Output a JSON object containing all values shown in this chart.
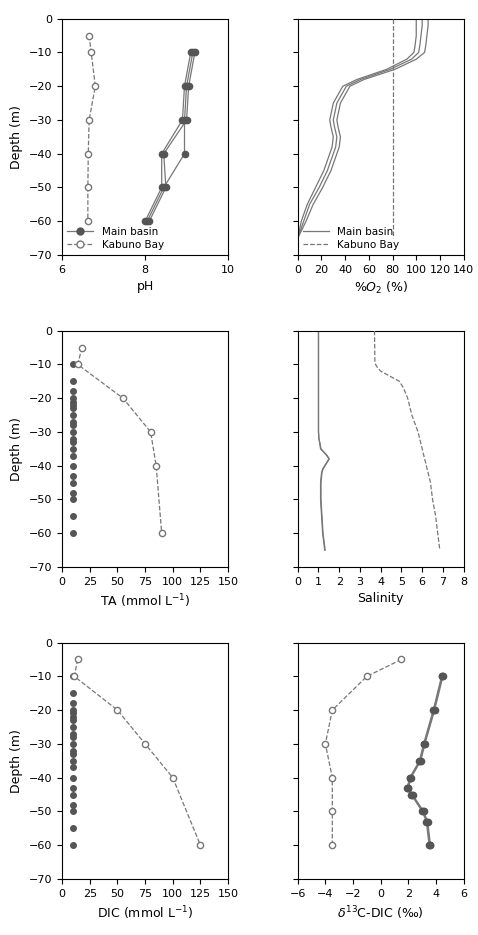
{
  "pH_kabuno_depth": [
    -5,
    -10,
    -20,
    -30,
    -40,
    -50,
    -60
  ],
  "pH_kabuno_values": [
    6.65,
    6.7,
    6.8,
    6.65,
    6.63,
    6.62,
    6.62
  ],
  "pH_main_series": [
    {
      "depth": [
        -10,
        -20,
        -30,
        -40,
        -50,
        -60
      ],
      "values": [
        9.2,
        9.05,
        9.0,
        8.45,
        8.5,
        8.1
      ]
    },
    {
      "depth": [
        -10,
        -20,
        -30,
        -40,
        -50,
        -60
      ],
      "values": [
        9.15,
        9.0,
        8.95,
        8.95,
        8.45,
        8.05
      ]
    },
    {
      "depth": [
        -10,
        -20,
        -30,
        -40,
        -50,
        -60
      ],
      "values": [
        9.1,
        8.95,
        8.9,
        8.4,
        8.4,
        8.0
      ]
    }
  ],
  "o2_kabuno_depth": [
    0,
    -10,
    -10.5,
    -65
  ],
  "o2_kabuno_values": [
    80,
    80,
    80,
    80
  ],
  "o2_main_series": [
    {
      "depth": [
        0,
        -2,
        -5,
        -8,
        -10,
        -12,
        -15,
        -18,
        -20,
        -25,
        -30,
        -32,
        -35,
        -38,
        -40,
        -45,
        -50,
        -55,
        -60,
        -65
      ],
      "values": [
        100,
        100,
        100,
        99,
        98,
        92,
        75,
        50,
        38,
        30,
        27,
        28,
        30,
        29,
        27,
        22,
        15,
        8,
        3,
        0
      ]
    },
    {
      "depth": [
        0,
        -2,
        -5,
        -8,
        -10,
        -12,
        -15,
        -18,
        -20,
        -25,
        -30,
        -32,
        -35,
        -38,
        -40,
        -45,
        -50,
        -55,
        -60,
        -65
      ],
      "values": [
        105,
        105,
        104,
        103,
        102,
        96,
        78,
        53,
        41,
        33,
        30,
        31,
        33,
        32,
        30,
        25,
        18,
        10,
        5,
        0
      ]
    },
    {
      "depth": [
        0,
        -2,
        -5,
        -8,
        -10,
        -12,
        -15,
        -18,
        -20,
        -25,
        -30,
        -32,
        -35,
        -38,
        -40,
        -45,
        -50,
        -55,
        -60,
        -65
      ],
      "values": [
        110,
        110,
        109,
        108,
        107,
        100,
        82,
        56,
        44,
        36,
        33,
        34,
        36,
        35,
        33,
        28,
        21,
        13,
        7,
        0
      ]
    }
  ],
  "ta_kabuno_depth": [
    -5,
    -10,
    -20,
    -30,
    -40,
    -60
  ],
  "ta_kabuno_values": [
    18,
    14,
    55,
    80,
    85,
    90
  ],
  "ta_main_depths": [
    -10,
    -15,
    -18,
    -20,
    -21,
    -22,
    -23,
    -25,
    -27,
    -28,
    -30,
    -32,
    -33,
    -35,
    -37,
    -40,
    -43,
    -45,
    -48,
    -50,
    -55,
    -60
  ],
  "ta_main_values": [
    10,
    10,
    10,
    10,
    10,
    10,
    10,
    10,
    10,
    10,
    10,
    10,
    10,
    10,
    10,
    10,
    10,
    10,
    10,
    10,
    10,
    10
  ],
  "salinity_kabuno_depth": [
    0,
    -9,
    -10,
    -11,
    -12,
    -13,
    -14,
    -15,
    -17,
    -20,
    -25,
    -30,
    -35,
    -40,
    -45,
    -50,
    -55,
    -60,
    -65
  ],
  "salinity_kabuno_values": [
    3.7,
    3.72,
    3.75,
    3.85,
    4.0,
    4.3,
    4.6,
    4.9,
    5.1,
    5.3,
    5.5,
    5.8,
    6.0,
    6.2,
    6.4,
    6.5,
    6.65,
    6.75,
    6.85
  ],
  "salinity_main_series": [
    {
      "depth": [
        0,
        -5,
        -10,
        -20,
        -30,
        -32,
        -33,
        -35,
        -37,
        -38,
        -39,
        -40,
        -41,
        -42,
        -45,
        -50,
        -55,
        -60,
        -65
      ],
      "values": [
        1.0,
        1.0,
        1.0,
        1.0,
        1.0,
        1.02,
        1.05,
        1.1,
        1.4,
        1.5,
        1.4,
        1.3,
        1.2,
        1.15,
        1.1,
        1.1,
        1.15,
        1.2,
        1.3
      ]
    },
    {
      "depth": [
        0,
        -5,
        -10,
        -20,
        -30,
        -32,
        -33,
        -35,
        -37,
        -38,
        -39,
        -40,
        -41,
        -42,
        -45,
        -50,
        -55,
        -60,
        -65
      ],
      "values": [
        1.0,
        1.0,
        1.0,
        1.0,
        1.0,
        1.02,
        1.06,
        1.12,
        1.42,
        1.52,
        1.42,
        1.32,
        1.22,
        1.17,
        1.12,
        1.12,
        1.17,
        1.22,
        1.32
      ]
    }
  ],
  "dic_kabuno_depth": [
    -5,
    -10,
    -20,
    -30,
    -40,
    -60
  ],
  "dic_kabuno_values": [
    14,
    11,
    50,
    75,
    100,
    125
  ],
  "dic_main_depths": [
    -10,
    -15,
    -18,
    -20,
    -21,
    -22,
    -23,
    -25,
    -27,
    -28,
    -30,
    -32,
    -33,
    -35,
    -37,
    -40,
    -43,
    -45,
    -48,
    -50,
    -55,
    -60
  ],
  "dic_main_values": [
    10,
    10,
    10,
    10,
    10,
    10,
    10,
    10,
    10,
    10,
    10,
    10,
    10,
    10,
    10,
    10,
    10,
    10,
    10,
    10,
    10,
    10
  ],
  "d13c_kabuno_depth": [
    -5,
    -10,
    -20,
    -30,
    -40,
    -50,
    -60
  ],
  "d13c_kabuno_values": [
    1.5,
    -1.0,
    -3.5,
    -4.0,
    -3.5,
    -3.5,
    -3.5
  ],
  "d13c_main_series": [
    {
      "depth": [
        -10,
        -20,
        -30,
        -35,
        -40,
        -43,
        -45,
        -50,
        -53,
        -60
      ],
      "values": [
        4.5,
        3.9,
        3.2,
        2.9,
        2.2,
        2.0,
        2.3,
        3.1,
        3.4,
        3.6
      ]
    },
    {
      "depth": [
        -10,
        -20,
        -30,
        -35,
        -40,
        -43,
        -45,
        -50,
        -53,
        -60
      ],
      "values": [
        4.45,
        3.85,
        3.15,
        2.85,
        2.15,
        1.95,
        2.25,
        3.05,
        3.35,
        3.55
      ]
    },
    {
      "depth": [
        -10,
        -20,
        -30,
        -35,
        -40,
        -43,
        -45,
        -50,
        -53,
        -60
      ],
      "values": [
        4.4,
        3.8,
        3.1,
        2.8,
        2.1,
        1.9,
        2.2,
        3.0,
        3.3,
        3.5
      ]
    }
  ],
  "marker_color_main": "#555555",
  "line_color": "#777777",
  "ylabel": "Depth (m)",
  "ylim": [
    -70,
    0
  ],
  "yticks": [
    0,
    -10,
    -20,
    -30,
    -40,
    -50,
    -60,
    -70
  ]
}
